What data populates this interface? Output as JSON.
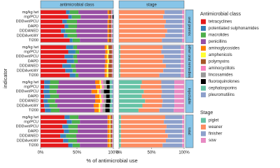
{
  "chart_data": {
    "type": "stacked-barh-facet",
    "ylabel": "indicator",
    "xlabel": "% of antimicrobial use",
    "columns": [
      "antimicrobial class",
      "stage"
    ],
    "rows": [
      "oral premix",
      "other oral remedies",
      "injectable",
      "total"
    ],
    "categories": [
      "mg/kg lwt",
      "mg/PCU",
      "DDDvet/PCU",
      "DAPD",
      "DDDANED",
      "DDDAvet/AY",
      "TI200"
    ],
    "xlim": [
      0,
      100
    ],
    "xticks": [
      {
        "value": 0,
        "label": "0%"
      },
      {
        "value": 50,
        "label": "50%"
      },
      {
        "value": 100,
        "label": "100%"
      }
    ],
    "class_legend_title": "Antimicrobial class",
    "class_series": [
      {
        "name": "tetracyclines",
        "color": "#e41a1c",
        "values": [
          [
            35,
            38,
            30,
            33,
            28,
            32,
            40
          ],
          [
            35,
            38,
            33,
            36,
            30,
            34,
            40
          ],
          [
            5,
            5,
            4,
            5,
            4,
            5,
            6
          ],
          [
            33,
            36,
            30,
            32,
            27,
            31,
            38
          ]
        ]
      },
      {
        "name": "potentiated sulphonamides",
        "color": "#377eb8",
        "values": [
          [
            5,
            5,
            6,
            5,
            6,
            5,
            4
          ],
          [
            10,
            10,
            12,
            10,
            12,
            10,
            8
          ],
          [
            8,
            7,
            8,
            8,
            6,
            7,
            8
          ],
          [
            7,
            7,
            8,
            7,
            8,
            7,
            6
          ]
        ]
      },
      {
        "name": "macrolides",
        "color": "#4daf4a",
        "values": [
          [
            12,
            12,
            14,
            12,
            15,
            13,
            10
          ],
          [
            5,
            5,
            5,
            5,
            6,
            5,
            4
          ],
          [
            12,
            12,
            10,
            12,
            10,
            11,
            12
          ],
          [
            12,
            11,
            13,
            12,
            14,
            12,
            10
          ]
        ]
      },
      {
        "name": "penicillins",
        "color": "#984ea3",
        "values": [
          [
            40,
            38,
            42,
            42,
            43,
            42,
            38
          ],
          [
            38,
            36,
            38,
            38,
            40,
            39,
            36
          ],
          [
            50,
            52,
            48,
            50,
            55,
            50,
            48
          ],
          [
            40,
            38,
            41,
            41,
            43,
            42,
            38
          ]
        ]
      },
      {
        "name": "aminoglycosides",
        "color": "#ff7f00",
        "values": [
          [
            2,
            2,
            2,
            2,
            2,
            2,
            2
          ],
          [
            3,
            3,
            3,
            3,
            3,
            3,
            3
          ],
          [
            6,
            6,
            8,
            6,
            7,
            7,
            6
          ],
          [
            3,
            3,
            3,
            3,
            3,
            3,
            3
          ]
        ]
      },
      {
        "name": "amphenicols",
        "color": "#ffff33",
        "values": [
          [
            0,
            0,
            0,
            0,
            0,
            0,
            0
          ],
          [
            2,
            2,
            2,
            2,
            2,
            2,
            2
          ],
          [
            2,
            2,
            2,
            2,
            2,
            2,
            2
          ],
          [
            1,
            1,
            1,
            1,
            1,
            1,
            1
          ]
        ]
      },
      {
        "name": "polymyxins",
        "color": "#a65628",
        "values": [
          [
            3,
            2,
            3,
            3,
            3,
            3,
            3
          ],
          [
            5,
            4,
            5,
            4,
            5,
            5,
            5
          ],
          [
            0,
            0,
            0,
            0,
            0,
            0,
            0
          ],
          [
            2,
            2,
            2,
            2,
            2,
            2,
            2
          ]
        ]
      },
      {
        "name": "aminocyclitols",
        "color": "#f781bf",
        "values": [
          [
            1,
            1,
            1,
            1,
            1,
            1,
            1
          ],
          [
            1,
            1,
            1,
            1,
            1,
            1,
            1
          ],
          [
            3,
            3,
            3,
            3,
            3,
            3,
            3
          ],
          [
            1,
            1,
            1,
            1,
            1,
            1,
            1
          ]
        ]
      },
      {
        "name": "lincosamides",
        "color": "#999999",
        "values": [
          [
            1,
            1,
            1,
            1,
            1,
            1,
            1
          ],
          [
            1,
            1,
            1,
            1,
            1,
            1,
            1
          ],
          [
            4,
            4,
            4,
            4,
            3,
            4,
            4
          ],
          [
            1,
            1,
            1,
            1,
            1,
            1,
            1
          ]
        ]
      },
      {
        "name": "fluoroquinolones",
        "color": "#000000",
        "values": [
          [
            0,
            1,
            0,
            0,
            0,
            0,
            0
          ],
          [
            0,
            0,
            0,
            0,
            0,
            0,
            0
          ],
          [
            5,
            4,
            8,
            5,
            6,
            6,
            6
          ],
          [
            0,
            0,
            0,
            0,
            0,
            0,
            0
          ]
        ]
      },
      {
        "name": "cephalosporins",
        "color": "#66c2a5",
        "values": [
          [
            0,
            0,
            0,
            0,
            0,
            0,
            0
          ],
          [
            0,
            0,
            0,
            0,
            0,
            0,
            0
          ],
          [
            3,
            3,
            3,
            3,
            2,
            3,
            3
          ],
          [
            0,
            0,
            0,
            0,
            0,
            0,
            0
          ]
        ]
      },
      {
        "name": "pleuromutilins",
        "color": "#8da0cb",
        "values": [
          [
            1,
            1,
            1,
            1,
            1,
            1,
            1
          ],
          [
            0,
            0,
            0,
            0,
            0,
            0,
            0
          ],
          [
            2,
            2,
            2,
            2,
            2,
            2,
            2
          ],
          [
            0,
            0,
            0,
            0,
            0,
            0,
            0
          ]
        ]
      }
    ],
    "stage_legend_title": "Stage",
    "stage_series": [
      {
        "name": "piglet",
        "color": "#66c2a5",
        "values": [
          [
            0,
            0,
            0,
            0,
            0,
            0,
            0
          ],
          [
            2,
            2,
            2,
            2,
            2,
            2,
            2
          ],
          [
            35,
            33,
            38,
            35,
            40,
            36,
            30
          ],
          [
            3,
            3,
            3,
            3,
            3,
            3,
            3
          ]
        ]
      },
      {
        "name": "weaner",
        "color": "#fc8d62",
        "values": [
          [
            70,
            68,
            72,
            70,
            74,
            71,
            66
          ],
          [
            65,
            63,
            67,
            65,
            70,
            66,
            60
          ],
          [
            30,
            32,
            28,
            30,
            27,
            30,
            32
          ],
          [
            68,
            66,
            70,
            68,
            72,
            69,
            64
          ]
        ]
      },
      {
        "name": "finisher",
        "color": "#8da0cb",
        "values": [
          [
            27,
            29,
            25,
            27,
            23,
            26,
            31
          ],
          [
            28,
            30,
            26,
            28,
            23,
            27,
            33
          ],
          [
            20,
            20,
            19,
            20,
            18,
            19,
            22
          ],
          [
            26,
            28,
            24,
            26,
            22,
            25,
            30
          ]
        ]
      },
      {
        "name": "sow",
        "color": "#e78ac3",
        "values": [
          [
            3,
            3,
            3,
            3,
            3,
            3,
            3
          ],
          [
            5,
            5,
            5,
            5,
            5,
            5,
            5
          ],
          [
            15,
            15,
            15,
            15,
            15,
            15,
            16
          ],
          [
            3,
            3,
            3,
            3,
            3,
            3,
            3
          ]
        ]
      }
    ]
  }
}
